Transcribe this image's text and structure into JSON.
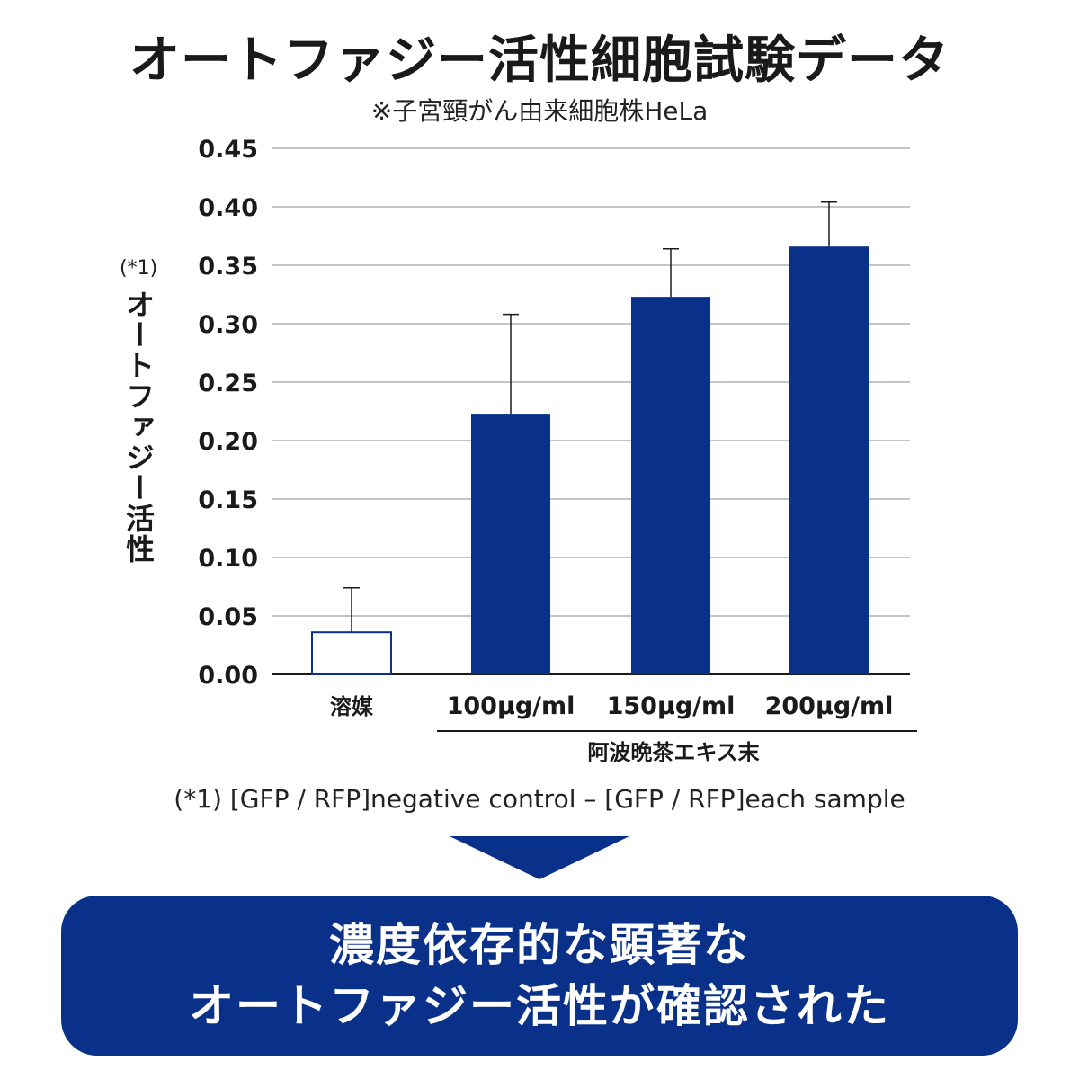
{
  "title": "オートファジー活性細胞試験データ",
  "subtitle": "※子宮頸がん由来細胞株HeLa",
  "y_axis_note": "(*1)",
  "footnote": "(*1) [GFP / RFP]negative control – [GFP / RFP]each sample",
  "conclusion": {
    "line1": "濃度依存的な顕著な",
    "line2": "オートファジー活性が確認された"
  },
  "colors": {
    "bar_fill": "#0a3189",
    "control_fill": "#ffffff",
    "control_stroke": "#0a3189",
    "grid": "#b0b0b0",
    "arrow": "#0a3189",
    "banner": "#0a3189"
  },
  "chart_data": {
    "type": "bar",
    "title": "オートファジー活性細胞試験データ",
    "subtitle": "※子宮頸がん由来細胞株HeLa",
    "ylabel": "オートファジー活性",
    "xlabel": "",
    "categories": [
      "溶媒",
      "100μg/ml",
      "150μg/ml",
      "200μg/ml"
    ],
    "group_label": "阿波晩茶エキス末",
    "group_members": [
      "100μg/ml",
      "150μg/ml",
      "200μg/ml"
    ],
    "values": [
      0.036,
      0.223,
      0.323,
      0.366
    ],
    "error_upper": [
      0.074,
      0.308,
      0.364,
      0.404
    ],
    "ylim": [
      0,
      0.45
    ],
    "yticks": [
      "0.00",
      "0.05",
      "0.10",
      "0.15",
      "0.20",
      "0.25",
      "0.30",
      "0.35",
      "0.40",
      "0.45"
    ],
    "grid": true,
    "legend": "none"
  }
}
